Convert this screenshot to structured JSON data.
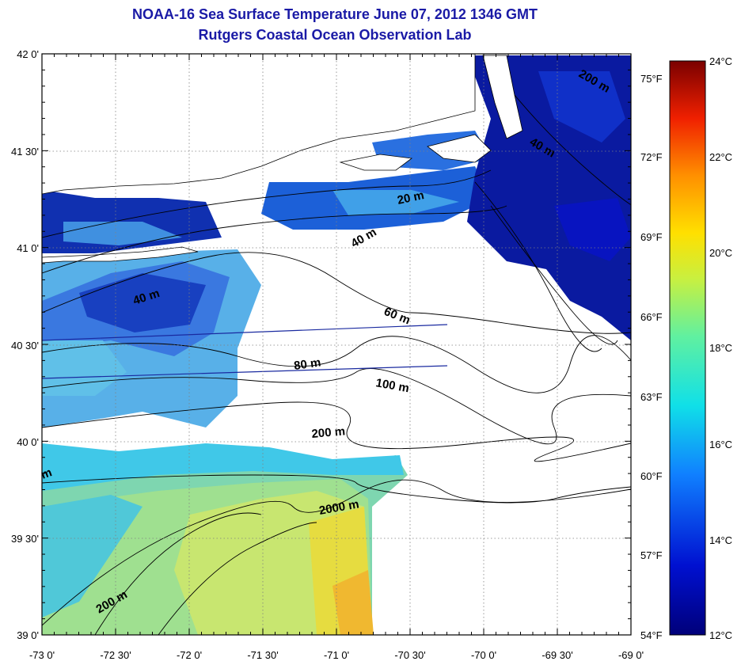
{
  "title": "NOAA-16 Sea Surface Temperature June 07, 2012 1346 GMT",
  "subtitle": "Rutgers Coastal Ocean Observation Lab",
  "lat_labels": [
    "42 0'",
    "41 30'",
    "41 0'",
    "40 30'",
    "40 0'",
    "39 30'",
    "39 0'"
  ],
  "lon_labels": [
    "-73 0'",
    "-72 30'",
    "-72 0'",
    "-71 30'",
    "-71 0'",
    "-70 30'",
    "-70 0'",
    "-69 30'",
    "-69 0'"
  ],
  "fahrenheit_labels": [
    "75°F",
    "72°F",
    "69°F",
    "66°F",
    "63°F",
    "60°F",
    "57°F",
    "54°F"
  ],
  "celsius_labels": [
    "24°C",
    "22°C",
    "20°C",
    "18°C",
    "16°C",
    "14°C",
    "12°C"
  ],
  "contour_labels": [
    "20 m",
    "40 m",
    "40 m",
    "60 m",
    "80 m",
    "100 m",
    "200 m",
    "2000 m",
    "200 m",
    "m",
    "40 m",
    "200 m"
  ],
  "colors": {
    "title": "#1a1aa6",
    "cold": "#0a1a9c",
    "mid": "#4aa0e8",
    "warm": "#e8dc40",
    "land": "#ffffff"
  }
}
